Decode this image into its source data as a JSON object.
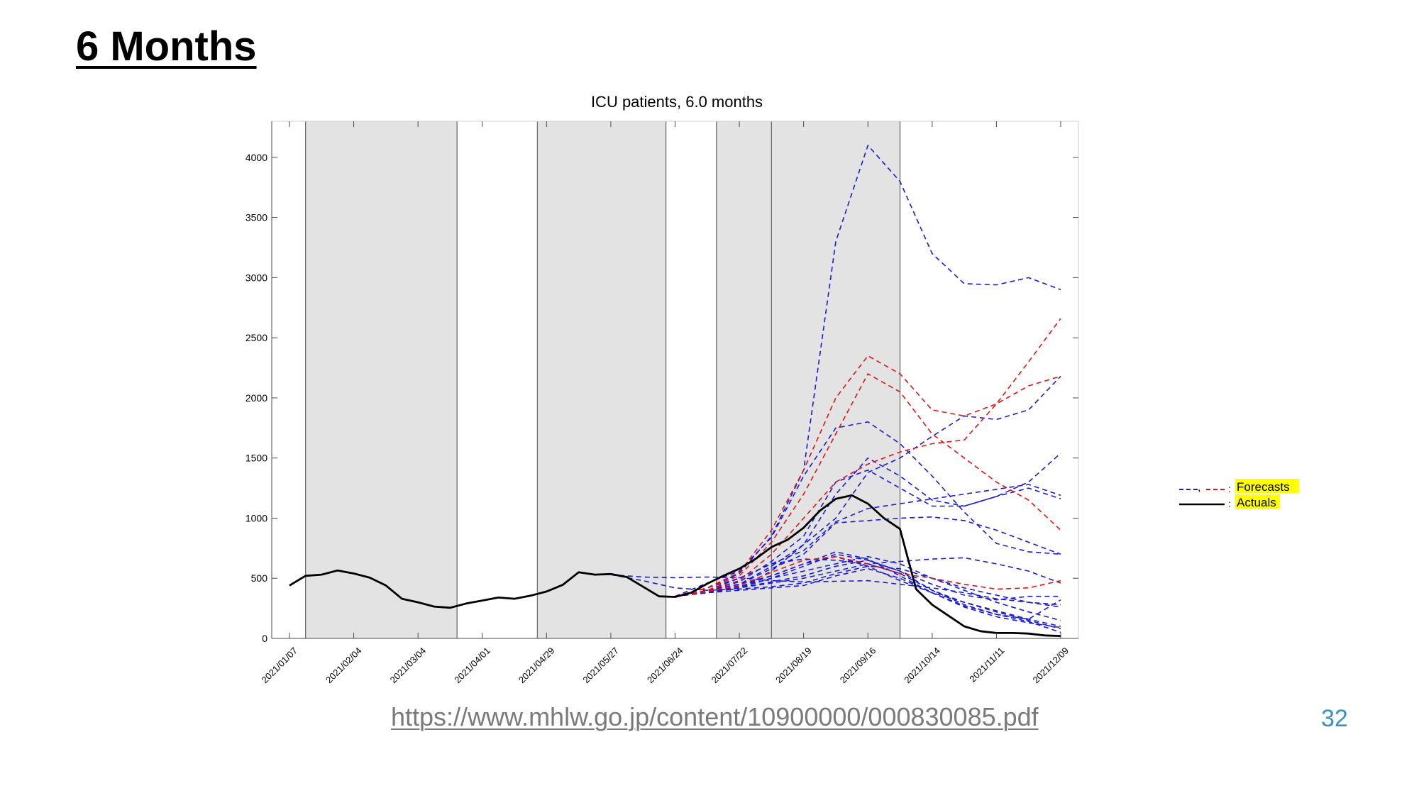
{
  "slide": {
    "title": "6 Months",
    "source_link": "https://www.mhlw.go.jp/content/10900000/000830085.pdf",
    "page_number": "32"
  },
  "colors": {
    "forecast_blue": "#1a1ad6",
    "forecast_red": "#e01414",
    "actual": "#000000",
    "shade": "#e3e3e3",
    "legend_highlight": "#ffff00",
    "page_number": "#3a8fbe"
  },
  "chart_data": {
    "type": "line",
    "title": "ICU patients, 6.0 months",
    "xlabel": "",
    "ylabel": "",
    "ylim": [
      0,
      4300
    ],
    "xlim": [
      "2021-01-07",
      "2021-12-16"
    ],
    "x_ticks": [
      "2021/01/07",
      "2021/02/04",
      "2021/03/04",
      "2021/04/01",
      "2021/04/29",
      "2021/05/27",
      "2021/06/24",
      "2021/07/22",
      "2021/08/19",
      "2021/09/16",
      "2021/10/14",
      "2021/11/11",
      "2021/12/09"
    ],
    "y_ticks": [
      0,
      500,
      1000,
      1500,
      2000,
      2500,
      3000,
      3500,
      4000
    ],
    "grid": false,
    "legend": {
      "position": "right",
      "entries": [
        {
          "label": "Forecasts",
          "symbol": ", ",
          "separator": ":"
        },
        {
          "label": "Actuals",
          "separator": ":"
        }
      ]
    },
    "shaded_periods": [
      [
        "2021-01-14",
        "2021-03-21"
      ],
      [
        "2021-04-25",
        "2021-06-20"
      ],
      [
        "2021-07-12",
        "2021-08-05"
      ],
      [
        "2021-08-05",
        "2021-09-30"
      ]
    ],
    "vertical_lines": [
      "2021-01-14",
      "2021-03-21",
      "2021-04-25",
      "2021-06-20",
      "2021-07-12",
      "2021-08-05",
      "2021-09-30"
    ],
    "actuals": {
      "name": "Actuals",
      "x": [
        "2021-01-07",
        "2021-01-14",
        "2021-01-21",
        "2021-01-28",
        "2021-02-04",
        "2021-02-11",
        "2021-02-18",
        "2021-02-25",
        "2021-03-04",
        "2021-03-11",
        "2021-03-18",
        "2021-03-25",
        "2021-04-01",
        "2021-04-08",
        "2021-04-15",
        "2021-04-22",
        "2021-04-29",
        "2021-05-06",
        "2021-05-13",
        "2021-05-20",
        "2021-05-27",
        "2021-06-03",
        "2021-06-10",
        "2021-06-17",
        "2021-06-24",
        "2021-07-01",
        "2021-07-08",
        "2021-07-15",
        "2021-07-22",
        "2021-07-29",
        "2021-08-05",
        "2021-08-12",
        "2021-08-19",
        "2021-08-26",
        "2021-09-02",
        "2021-09-09",
        "2021-09-16",
        "2021-09-23",
        "2021-09-30",
        "2021-10-07",
        "2021-10-14",
        "2021-10-21",
        "2021-10-28",
        "2021-11-04",
        "2021-11-11",
        "2021-11-18",
        "2021-11-25",
        "2021-12-02",
        "2021-12-09"
      ],
      "values": [
        440,
        520,
        530,
        565,
        540,
        505,
        440,
        330,
        300,
        265,
        255,
        290,
        315,
        340,
        330,
        355,
        390,
        445,
        550,
        530,
        535,
        510,
        430,
        350,
        345,
        380,
        455,
        520,
        580,
        660,
        760,
        820,
        920,
        1060,
        1160,
        1190,
        1120,
        1000,
        910,
        410,
        280,
        190,
        100,
        60,
        45,
        45,
        40,
        25,
        20
      ]
    },
    "forecasts": [
      {
        "color": "blue",
        "x": [
          "2021-05-27",
          "2021-06-10",
          "2021-06-24",
          "2021-07-08",
          "2021-07-22",
          "2021-08-05",
          "2021-08-19",
          "2021-09-02",
          "2021-09-16",
          "2021-09-30",
          "2021-10-14",
          "2021-10-28",
          "2021-11-11",
          "2021-11-25",
          "2021-12-09"
        ],
        "values": [
          530,
          510,
          505,
          510,
          505,
          480,
          470,
          475,
          480,
          450,
          420,
          380,
          330,
          300,
          280
        ]
      },
      {
        "color": "blue",
        "x": [
          "2021-05-27",
          "2021-06-10",
          "2021-06-24",
          "2021-07-08",
          "2021-07-22",
          "2021-08-05",
          "2021-08-19",
          "2021-09-02",
          "2021-09-16",
          "2021-09-30",
          "2021-10-14",
          "2021-10-28",
          "2021-11-11",
          "2021-11-25",
          "2021-12-09"
        ],
        "values": [
          530,
          480,
          420,
          400,
          410,
          430,
          460,
          540,
          600,
          580,
          500,
          420,
          360,
          300,
          260
        ]
      },
      {
        "color": "blue",
        "x": [
          "2021-06-24",
          "2021-07-08",
          "2021-07-22",
          "2021-08-05",
          "2021-08-19",
          "2021-09-02",
          "2021-09-16",
          "2021-09-30",
          "2021-10-14",
          "2021-10-28",
          "2021-11-11",
          "2021-11-25",
          "2021-12-09"
        ],
        "values": [
          350,
          420,
          500,
          620,
          730,
          970,
          1080,
          1120,
          1160,
          1200,
          1240,
          1280,
          1190
        ]
      },
      {
        "color": "blue",
        "x": [
          "2021-06-24",
          "2021-07-08",
          "2021-07-22",
          "2021-08-05",
          "2021-08-19",
          "2021-09-02",
          "2021-09-16",
          "2021-09-30",
          "2021-10-14",
          "2021-10-28",
          "2021-11-11",
          "2021-11-25",
          "2021-12-09"
        ],
        "values": [
          350,
          460,
          560,
          840,
          1350,
          1750,
          1800,
          1620,
          1350,
          1050,
          790,
          720,
          700
        ]
      },
      {
        "color": "blue",
        "x": [
          "2021-06-24",
          "2021-07-08",
          "2021-07-22",
          "2021-08-05",
          "2021-08-19",
          "2021-09-02",
          "2021-09-16",
          "2021-09-30",
          "2021-10-14",
          "2021-10-28",
          "2021-11-11",
          "2021-11-25",
          "2021-12-09"
        ],
        "values": [
          350,
          380,
          420,
          560,
          780,
          1200,
          1500,
          1350,
          1150,
          1100,
          1180,
          1250,
          1160
        ]
      },
      {
        "color": "blue",
        "x": [
          "2021-06-24",
          "2021-07-08",
          "2021-07-22",
          "2021-08-05",
          "2021-08-19",
          "2021-09-02",
          "2021-09-16",
          "2021-09-30",
          "2021-10-14",
          "2021-10-28",
          "2021-11-11",
          "2021-11-25",
          "2021-12-09"
        ],
        "values": [
          350,
          400,
          450,
          600,
          780,
          1000,
          1380,
          1500,
          1680,
          1850,
          1820,
          1900,
          2180
        ]
      },
      {
        "color": "blue",
        "x": [
          "2021-06-24",
          "2021-07-08",
          "2021-07-22",
          "2021-08-05",
          "2021-08-19",
          "2021-09-02",
          "2021-09-16",
          "2021-09-30",
          "2021-10-14",
          "2021-10-28",
          "2021-11-11",
          "2021-11-25",
          "2021-12-09"
        ],
        "values": [
          350,
          420,
          540,
          850,
          1400,
          3300,
          4100,
          3800,
          3200,
          2950,
          2940,
          3000,
          2900
        ]
      },
      {
        "color": "blue",
        "x": [
          "2021-06-24",
          "2021-07-08",
          "2021-07-22",
          "2021-08-05",
          "2021-08-19",
          "2021-09-02",
          "2021-09-16",
          "2021-09-30",
          "2021-10-14",
          "2021-10-28",
          "2021-11-11",
          "2021-11-25",
          "2021-12-09"
        ],
        "values": [
          350,
          400,
          470,
          640,
          850,
          1300,
          1400,
          1250,
          1100,
          1100,
          1180,
          1300,
          1540
        ]
      },
      {
        "color": "blue",
        "x": [
          "2021-06-24",
          "2021-07-08",
          "2021-07-22",
          "2021-08-05",
          "2021-08-19",
          "2021-09-02",
          "2021-09-16",
          "2021-09-30",
          "2021-10-14",
          "2021-10-28",
          "2021-11-11",
          "2021-11-25",
          "2021-12-09"
        ],
        "values": [
          350,
          400,
          450,
          580,
          700,
          960,
          980,
          1000,
          1010,
          980,
          900,
          800,
          700
        ]
      },
      {
        "color": "blue",
        "x": [
          "2021-06-24",
          "2021-07-08",
          "2021-07-22",
          "2021-08-05",
          "2021-08-19",
          "2021-09-02",
          "2021-09-16",
          "2021-09-30",
          "2021-10-14",
          "2021-10-28",
          "2021-11-11",
          "2021-11-25",
          "2021-12-09"
        ],
        "values": [
          350,
          390,
          430,
          500,
          560,
          620,
          680,
          620,
          500,
          400,
          300,
          220,
          150
        ]
      },
      {
        "color": "blue",
        "x": [
          "2021-06-24",
          "2021-07-08",
          "2021-07-22",
          "2021-08-05",
          "2021-08-19",
          "2021-09-02",
          "2021-09-16",
          "2021-09-30",
          "2021-10-14",
          "2021-10-28",
          "2021-11-11",
          "2021-11-25",
          "2021-12-09"
        ],
        "values": [
          350,
          380,
          420,
          470,
          520,
          600,
          650,
          560,
          400,
          300,
          220,
          150,
          80
        ]
      },
      {
        "color": "blue",
        "x": [
          "2021-06-24",
          "2021-07-08",
          "2021-07-22",
          "2021-08-05",
          "2021-08-19",
          "2021-09-02",
          "2021-09-16",
          "2021-09-30",
          "2021-10-14",
          "2021-10-28",
          "2021-11-11",
          "2021-11-25",
          "2021-12-09"
        ],
        "values": [
          350,
          380,
          420,
          460,
          500,
          560,
          620,
          540,
          400,
          280,
          200,
          140,
          50
        ]
      },
      {
        "color": "blue",
        "x": [
          "2021-06-24",
          "2021-07-08",
          "2021-07-22",
          "2021-08-05",
          "2021-08-19",
          "2021-09-02",
          "2021-09-16",
          "2021-09-30",
          "2021-10-14",
          "2021-10-28",
          "2021-11-11",
          "2021-11-25",
          "2021-12-09"
        ],
        "values": [
          350,
          400,
          450,
          520,
          620,
          680,
          600,
          480,
          380,
          300,
          230,
          160,
          100
        ]
      },
      {
        "color": "blue",
        "x": [
          "2021-06-24",
          "2021-07-08",
          "2021-07-22",
          "2021-08-05",
          "2021-08-19",
          "2021-09-02",
          "2021-09-16",
          "2021-09-30",
          "2021-10-14",
          "2021-10-28",
          "2021-11-11",
          "2021-11-25",
          "2021-12-09"
        ],
        "values": [
          350,
          380,
          400,
          420,
          440,
          520,
          580,
          500,
          380,
          260,
          180,
          130,
          90
        ]
      },
      {
        "color": "blue",
        "x": [
          "2021-06-24",
          "2021-07-08",
          "2021-07-22",
          "2021-08-05",
          "2021-08-19",
          "2021-09-02",
          "2021-09-16",
          "2021-09-30",
          "2021-10-14",
          "2021-10-28",
          "2021-11-11",
          "2021-11-25",
          "2021-12-09"
        ],
        "values": [
          350,
          400,
          500,
          620,
          660,
          650,
          620,
          640,
          660,
          670,
          620,
          560,
          460
        ]
      },
      {
        "color": "blue",
        "x": [
          "2021-06-24",
          "2021-07-08",
          "2021-07-22",
          "2021-08-05",
          "2021-08-19",
          "2021-09-02",
          "2021-09-16",
          "2021-09-30",
          "2021-10-14",
          "2021-10-28",
          "2021-11-11",
          "2021-11-25",
          "2021-12-09"
        ],
        "values": [
          350,
          390,
          420,
          500,
          600,
          700,
          650,
          560,
          450,
          360,
          320,
          350,
          350
        ]
      },
      {
        "color": "blue",
        "x": [
          "2021-06-24",
          "2021-07-08",
          "2021-07-22",
          "2021-08-05",
          "2021-08-19",
          "2021-09-02",
          "2021-09-16",
          "2021-09-30",
          "2021-10-14",
          "2021-10-28",
          "2021-11-11",
          "2021-11-25",
          "2021-12-09"
        ],
        "values": [
          350,
          390,
          430,
          520,
          620,
          720,
          660,
          520,
          380,
          270,
          200,
          160,
          320
        ]
      },
      {
        "color": "red",
        "x": [
          "2021-06-24",
          "2021-07-08",
          "2021-07-22",
          "2021-08-05",
          "2021-08-19",
          "2021-09-02",
          "2021-09-16",
          "2021-09-30",
          "2021-10-14",
          "2021-10-28",
          "2021-11-11",
          "2021-11-25",
          "2021-12-09"
        ],
        "values": [
          350,
          420,
          550,
          900,
          1400,
          2000,
          2350,
          2200,
          1900,
          1850,
          1950,
          2100,
          2180
        ]
      },
      {
        "color": "red",
        "x": [
          "2021-06-24",
          "2021-07-08",
          "2021-07-22",
          "2021-08-05",
          "2021-08-19",
          "2021-09-02",
          "2021-09-16",
          "2021-09-30",
          "2021-10-14",
          "2021-10-28",
          "2021-11-11",
          "2021-11-25",
          "2021-12-09"
        ],
        "values": [
          350,
          420,
          520,
          800,
          1200,
          1700,
          2200,
          2050,
          1700,
          1500,
          1300,
          1150,
          900
        ]
      },
      {
        "color": "red",
        "x": [
          "2021-06-24",
          "2021-07-08",
          "2021-07-22",
          "2021-08-05",
          "2021-08-19",
          "2021-09-02",
          "2021-09-16",
          "2021-09-30",
          "2021-10-14",
          "2021-10-28",
          "2021-11-11",
          "2021-11-25",
          "2021-12-09"
        ],
        "values": [
          350,
          400,
          480,
          700,
          1000,
          1300,
          1450,
          1550,
          1620,
          1650,
          1950,
          2300,
          2660
        ]
      },
      {
        "color": "red",
        "x": [
          "2021-06-24",
          "2021-07-08",
          "2021-07-22",
          "2021-08-05",
          "2021-08-19",
          "2021-09-02",
          "2021-09-16",
          "2021-09-30",
          "2021-10-14",
          "2021-10-28",
          "2021-11-11",
          "2021-11-25",
          "2021-12-09"
        ],
        "values": [
          350,
          390,
          440,
          550,
          650,
          680,
          620,
          540,
          500,
          450,
          410,
          420,
          480
        ]
      }
    ]
  }
}
